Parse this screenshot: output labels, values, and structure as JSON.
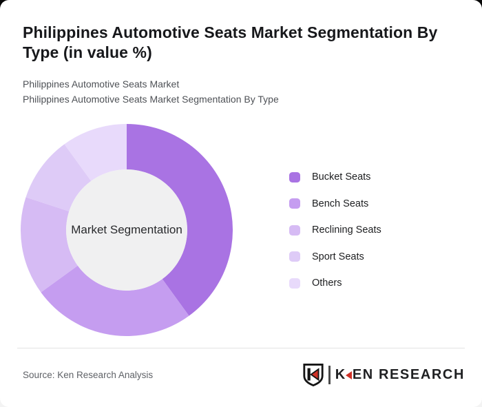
{
  "header": {
    "title": "Philippines Automotive Seats Market Segmentation By Type (in value %)",
    "subtitle_line1": "Philippines Automotive Seats Market",
    "subtitle_line2": "Philippines Automotive Seats Market Segmentation By Type"
  },
  "chart_data": {
    "type": "pie",
    "variant": "donut",
    "title": "Philippines Automotive Seats Market Segmentation By Type (in value %)",
    "center_label": "Market Segmentation",
    "categories": [
      "Bucket Seats",
      "Bench Seats",
      "Reclining Seats",
      "Sport Seats",
      "Others"
    ],
    "values": [
      40,
      25,
      15,
      10,
      10
    ],
    "unit": "% of value",
    "colors": [
      "#a973e3",
      "#c59df0",
      "#d6bbf4",
      "#decbf7",
      "#e8dafb"
    ],
    "start_angle_deg": 0,
    "clockwise": true,
    "inner_radius_ratio": 0.571,
    "center_fill": "#f0f0f1",
    "legend_position": "right"
  },
  "legend": {
    "items": [
      {
        "label": "Bucket Seats",
        "color": "#a973e3"
      },
      {
        "label": "Bench Seats",
        "color": "#c59df0"
      },
      {
        "label": "Reclining Seats",
        "color": "#d6bbf4"
      },
      {
        "label": "Sport Seats",
        "color": "#decbf7"
      },
      {
        "label": "Others",
        "color": "#e8dafb"
      }
    ]
  },
  "footer": {
    "source": "Source: Ken Research Analysis",
    "logo": {
      "k": "K",
      "rest": "EN RESEARCH",
      "full": "KEN RESEARCH"
    }
  },
  "colors": {
    "accent_red": "#cf3127",
    "title_text": "#17181b",
    "subtitle_text": "#4e5156",
    "legend_text": "#1d1e20",
    "source_text": "#5e6166",
    "divider": "#e2e2e2",
    "center_circle": "#f0f0f1",
    "center_text": "#28292c",
    "logo_text": "#1f2022",
    "logo_bar": "#4a4a4a"
  }
}
